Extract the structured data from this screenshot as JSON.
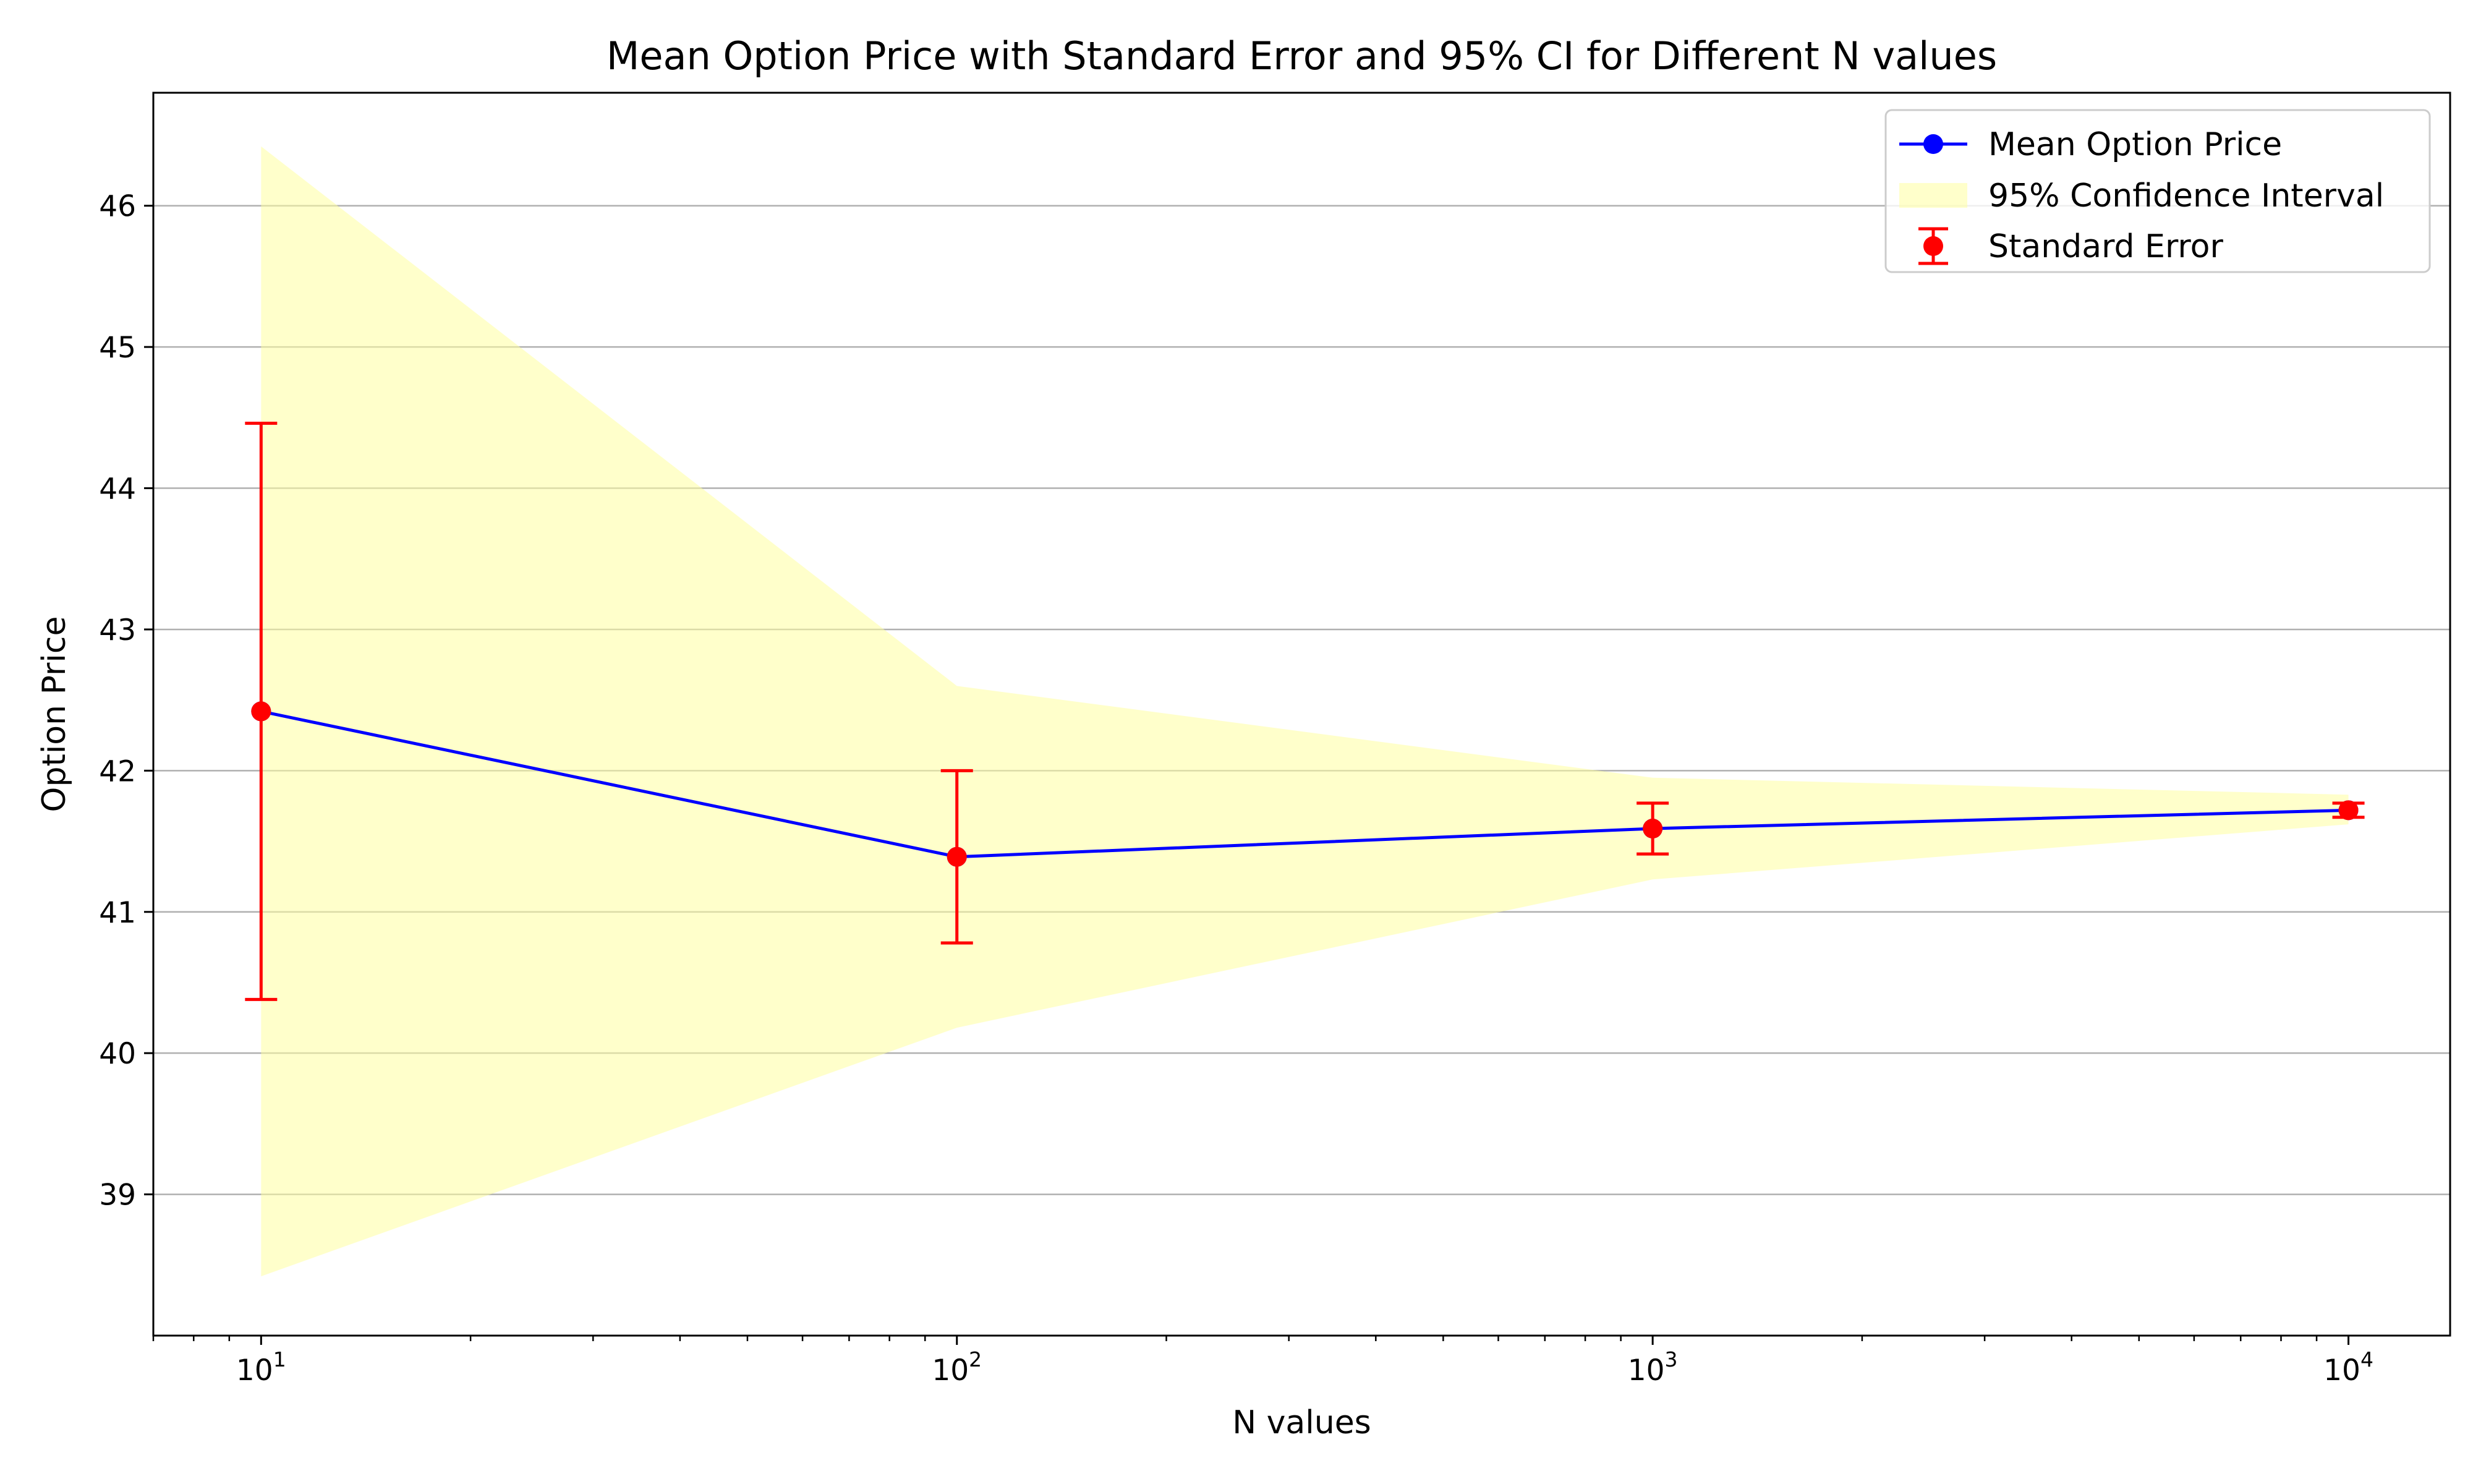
{
  "chart_data": {
    "type": "line",
    "title": "Mean Option Price with Standard Error and 95% CI for Different N values",
    "xlabel": "N values",
    "ylabel": "Option Price",
    "xscale": "log",
    "xlim": [
      7,
      14000
    ],
    "ylim": [
      38.0,
      46.8
    ],
    "grid": "y-major",
    "legend_position": "top-right",
    "x": [
      10,
      100,
      1000,
      10000
    ],
    "x_tick_labels": [
      {
        "value": 10,
        "base": "10",
        "exp": "1"
      },
      {
        "value": 100,
        "base": "10",
        "exp": "2"
      },
      {
        "value": 1000,
        "base": "10",
        "exp": "3"
      },
      {
        "value": 10000,
        "base": "10",
        "exp": "4"
      }
    ],
    "y_ticks": [
      39,
      40,
      41,
      42,
      43,
      44,
      45,
      46
    ],
    "series": [
      {
        "name": "Mean Option Price",
        "kind": "line",
        "color": "#0000ff",
        "values": [
          42.42,
          41.39,
          41.59,
          41.72
        ]
      },
      {
        "name": "95% Confidence Interval",
        "kind": "band",
        "color": "#ffffa0",
        "lower": [
          38.42,
          40.18,
          41.23,
          41.62
        ],
        "upper": [
          46.42,
          42.6,
          41.95,
          41.83
        ]
      },
      {
        "name": "Standard Error",
        "kind": "errorbar",
        "color": "#ff0000",
        "values": [
          42.42,
          41.39,
          41.59,
          41.72
        ],
        "error": [
          2.04,
          0.61,
          0.18,
          0.05
        ]
      }
    ]
  }
}
